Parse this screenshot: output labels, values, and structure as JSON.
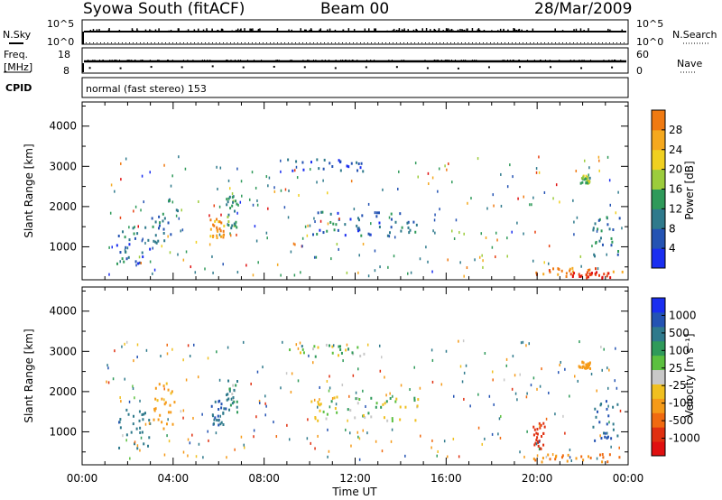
{
  "header": {
    "station": "Syowa South (fitACF)",
    "beam": "Beam 00",
    "date": "28/Mar/2009"
  },
  "strip_labels": {
    "nsky": "N.Sky",
    "freq_line1": "Freq.",
    "freq_line2": "[MHz]",
    "cpid": "CPID",
    "nsearch": "N.Search",
    "nave": "Nave",
    "noise_top": "10^5",
    "noise_bottom": "10^0",
    "freq_top": "18",
    "freq_bottom": "8",
    "nave_top": "60",
    "nave_bottom": "0"
  },
  "cpid_text": "normal (fast stereo) 153",
  "x_axis": {
    "title": "Time UT",
    "ticks": [
      "00:00",
      "04:00",
      "08:00",
      "12:00",
      "16:00",
      "20:00",
      "00:00"
    ],
    "range_hours": [
      0,
      24
    ]
  },
  "y_axis": {
    "title": "Slant Range [km]",
    "ticks": [
      "1000",
      "2000",
      "3000",
      "4000"
    ],
    "range_km": [
      180,
      4600
    ]
  },
  "power_colorbar": {
    "title": "Power [dB]",
    "ticks": [
      "4",
      "8",
      "12",
      "16",
      "20",
      "24",
      "28"
    ],
    "colors": [
      "#1a2ef0",
      "#2453b3",
      "#2f7a8c",
      "#2f9a5a",
      "#9ccc3c",
      "#f0d020",
      "#f5a81e",
      "#f07a12",
      "#e84010",
      "#e01010"
    ]
  },
  "velocity_colorbar": {
    "title": "Velocity [m s⁻¹]",
    "ticks": [
      "1000",
      "500",
      "100",
      "25",
      "-25",
      "-100",
      "-500",
      "-1000"
    ],
    "colors": [
      "#1a2ef0",
      "#2453b3",
      "#2f7a8c",
      "#2f9a5a",
      "#5cc040",
      "#c8c8c8",
      "#f0c020",
      "#f59a18",
      "#f06a10",
      "#e03010",
      "#e01010"
    ]
  },
  "chart_data": {
    "type": "heatmap",
    "title": "Syowa South (fitACF)",
    "xlabel": "Time UT",
    "ylabel": "Slant Range [km]",
    "xlim": [
      0,
      24
    ],
    "ylim": [
      180,
      4600
    ],
    "series": [
      {
        "name": "Power [dB]",
        "regions": [
          {
            "t": [
              1.5,
              3.0
            ],
            "r": [
              600,
              1600
            ],
            "value": 6
          },
          {
            "t": [
              3.0,
              4.2
            ],
            "r": [
              1100,
              2300
            ],
            "value": 8
          },
          {
            "t": [
              5.6,
              6.3
            ],
            "r": [
              1200,
              1800
            ],
            "value": 20
          },
          {
            "t": [
              6.3,
              6.8
            ],
            "r": [
              1500,
              2300
            ],
            "value": 10
          },
          {
            "t": [
              10.0,
              14.8
            ],
            "r": [
              1300,
              1900
            ],
            "value": 6
          },
          {
            "t": [
              9.0,
              12.5
            ],
            "r": [
              2900,
              3200
            ],
            "value": 5
          },
          {
            "t": [
              19.8,
              23.9
            ],
            "r": [
              280,
              500
            ],
            "value": 22
          },
          {
            "t": [
              21.5,
              23.2
            ],
            "r": [
              250,
              400
            ],
            "value": 28
          },
          {
            "t": [
              22.4,
              23.7
            ],
            "r": [
              800,
              1800
            ],
            "value": 8
          },
          {
            "t": [
              21.8,
              22.3
            ],
            "r": [
              2600,
              2800
            ],
            "value": 12
          }
        ]
      },
      {
        "name": "Velocity [m s⁻¹]",
        "regions": [
          {
            "t": [
              1.5,
              3.0
            ],
            "r": [
              600,
              1600
            ],
            "value": 200
          },
          {
            "t": [
              3.0,
              4.2
            ],
            "r": [
              1100,
              2300
            ],
            "value": -150
          },
          {
            "t": [
              5.6,
              6.3
            ],
            "r": [
              1200,
              1800
            ],
            "value": 300
          },
          {
            "t": [
              6.3,
              6.8
            ],
            "r": [
              1500,
              2300
            ],
            "value": 100
          },
          {
            "t": [
              10.0,
              14.8
            ],
            "r": [
              1300,
              1900
            ],
            "value": 0
          },
          {
            "t": [
              9.0,
              12.5
            ],
            "r": [
              2900,
              3200
            ],
            "value": 10
          },
          {
            "t": [
              19.8,
              23.9
            ],
            "r": [
              280,
              500
            ],
            "value": -300
          },
          {
            "t": [
              19.8,
              20.3
            ],
            "r": [
              600,
              1300
            ],
            "value": -700
          },
          {
            "t": [
              22.4,
              23.7
            ],
            "r": [
              800,
              1800
            ],
            "value": 300
          },
          {
            "t": [
              21.8,
              22.3
            ],
            "r": [
              2600,
              2800
            ],
            "value": -200
          }
        ]
      }
    ]
  }
}
